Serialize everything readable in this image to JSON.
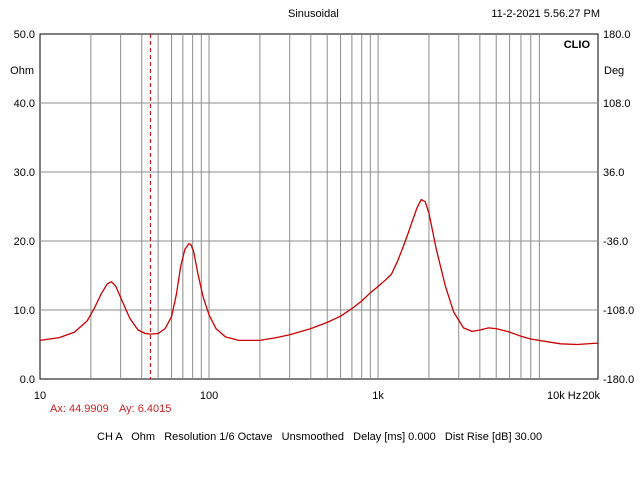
{
  "header": {
    "title": "Sinusoidal",
    "timestamp": "11-2-2021 5.56.27 PM"
  },
  "chart_data": {
    "type": "line",
    "brand": "CLIO",
    "x_scale": "log",
    "xlim": [
      10,
      20000
    ],
    "x_ticks": [
      {
        "value": 10,
        "label": "10"
      },
      {
        "value": 100,
        "label": "100"
      },
      {
        "value": 1000,
        "label": "1k"
      },
      {
        "value": 10000,
        "label": "10k Hz"
      },
      {
        "value": 20000,
        "label": "20k"
      }
    ],
    "y_left": {
      "unit": "Ohm",
      "lim": [
        0,
        50
      ],
      "ticks": [
        "0.0",
        "10.0",
        "20.0",
        "30.0",
        "40.0",
        "50.0"
      ]
    },
    "y_right": {
      "unit": "Deg",
      "lim": [
        -180,
        180
      ],
      "ticks": [
        "-180.0",
        "-108.0",
        "-36.0",
        "36.0",
        "108.0",
        "180.0"
      ]
    },
    "grid": true,
    "series": [
      {
        "color": "#cc0000",
        "x": [
          10,
          13,
          16,
          19,
          21,
          23,
          25,
          26.5,
          28,
          31,
          34,
          38,
          42,
          45,
          50,
          55,
          60,
          64,
          68,
          72,
          76,
          78,
          81,
          86,
          92,
          100,
          110,
          125,
          150,
          200,
          250,
          300,
          400,
          500,
          600,
          700,
          800,
          900,
          1000,
          1100,
          1200,
          1300,
          1400,
          1500,
          1600,
          1700,
          1800,
          1900,
          2000,
          2200,
          2500,
          2800,
          3200,
          3600,
          4000,
          4500,
          5000,
          6000,
          7000,
          8000,
          10000,
          12000,
          15000,
          20000
        ],
        "y": [
          5.6,
          6.0,
          6.8,
          8.4,
          10.3,
          12.3,
          13.8,
          14.1,
          13.5,
          11.0,
          8.8,
          7.1,
          6.6,
          6.5,
          6.6,
          7.3,
          9.0,
          12.2,
          16.3,
          18.8,
          19.6,
          19.5,
          18.5,
          15.2,
          12.0,
          9.3,
          7.3,
          6.1,
          5.6,
          5.6,
          6.0,
          6.4,
          7.3,
          8.2,
          9.1,
          10.2,
          11.3,
          12.5,
          13.4,
          14.3,
          15.2,
          17.0,
          19.0,
          21.0,
          23.0,
          24.8,
          26.0,
          25.7,
          24.0,
          19.0,
          13.5,
          9.7,
          7.4,
          6.9,
          7.1,
          7.4,
          7.3,
          6.8,
          6.2,
          5.8,
          5.4,
          5.1,
          5.0,
          5.2
        ]
      }
    ],
    "cursor": {
      "x": 44.9909,
      "label_x": "Ax: 44.9909",
      "label_y": "Ay: 6.4015"
    }
  },
  "footer": {
    "status_line": "CH A   Ohm   Resolution 1/6 Octave   Unsmoothed   Delay [ms] 0.000   Dist Rise [dB] 30.00"
  }
}
